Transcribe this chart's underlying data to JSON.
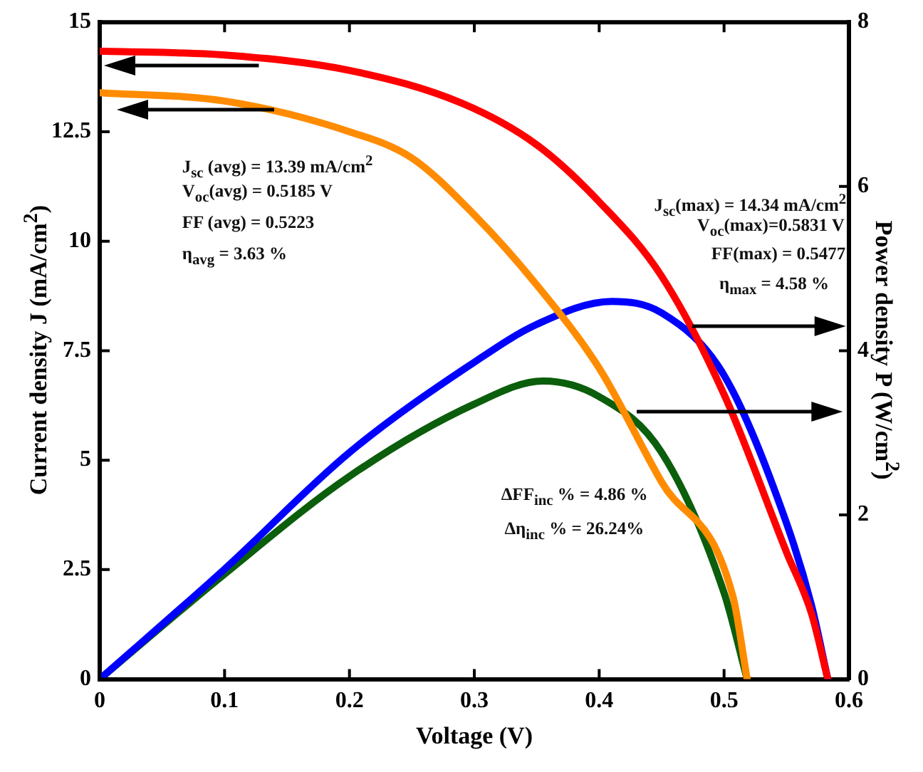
{
  "chart_data": {
    "type": "line",
    "xlabel": "Voltage (V)",
    "ylabel": "Current density J (mA/cm$^{2}$)",
    "y2label": "Power density P (W/cm$^{2}$)",
    "xlim": [
      0,
      0.6
    ],
    "xticks": [
      0,
      0.1,
      0.2,
      0.3,
      0.4,
      0.5,
      0.6
    ],
    "ylim": [
      0,
      15
    ],
    "yticks": [
      0,
      2.5,
      5,
      7.5,
      10,
      12.5,
      15
    ],
    "y2lim": [
      0,
      8
    ],
    "y2ticks": [
      0,
      2,
      4,
      6,
      8
    ],
    "grid": false,
    "legend": false,
    "marker": "none",
    "line_style": "solid",
    "series": [
      {
        "color": "#ff0000",
        "x": [
          0,
          0.1,
          0.2,
          0.29,
          0.35,
          0.4,
          0.45,
          0.5,
          0.55,
          0.57,
          0.5831
        ],
        "values": [
          14.34,
          14.25,
          13.9,
          13.15,
          12.2,
          10.9,
          9.2,
          6.5,
          2.9,
          1.5,
          0
        ]
      },
      {
        "color": "#ff8c00",
        "x": [
          0,
          0.1,
          0.2,
          0.25,
          0.3,
          0.35,
          0.4,
          0.45,
          0.507,
          0.5185
        ],
        "values": [
          13.39,
          13.2,
          12.5,
          11.9,
          10.6,
          9.0,
          7.1,
          4.5,
          1.9,
          0
        ]
      },
      {
        "color": "#0000ff",
        "axis": "y2",
        "x": [
          0,
          0.1,
          0.2,
          0.3,
          0.35,
          0.41,
          0.45,
          0.5,
          0.55,
          0.57,
          0.5831
        ],
        "values": [
          0,
          1.34,
          2.76,
          3.86,
          4.32,
          4.6,
          4.46,
          3.7,
          1.9,
          0.9,
          0
        ]
      },
      {
        "color": "#0b5e0b",
        "axis": "y2",
        "x": [
          0,
          0.1,
          0.2,
          0.3,
          0.355,
          0.4,
          0.45,
          0.5,
          0.5185
        ],
        "values": [
          0,
          1.28,
          2.47,
          3.35,
          3.63,
          3.44,
          2.76,
          1.05,
          0
        ]
      }
    ],
    "annotations": [
      "J$_{sc}$ (avg) = 13.39 mA/cm$^{2}$",
      "V$_{oc}$(avg) = 0.5185 V",
      "FF (avg) = 0.5223",
      "η$_{avg}$ = 3.63 %",
      "J$_{sc}$(max) = 14.34 mA/cm$^{2}$",
      "V$_{oc}$(max)=0.5831 V",
      "FF(max) = 0.5477",
      "η$_{max}$ = 4.58 %",
      "ΔFF$_{inc}$ % = 4.86 %",
      "Δη$_{inc}$ % = 26.24%"
    ]
  }
}
